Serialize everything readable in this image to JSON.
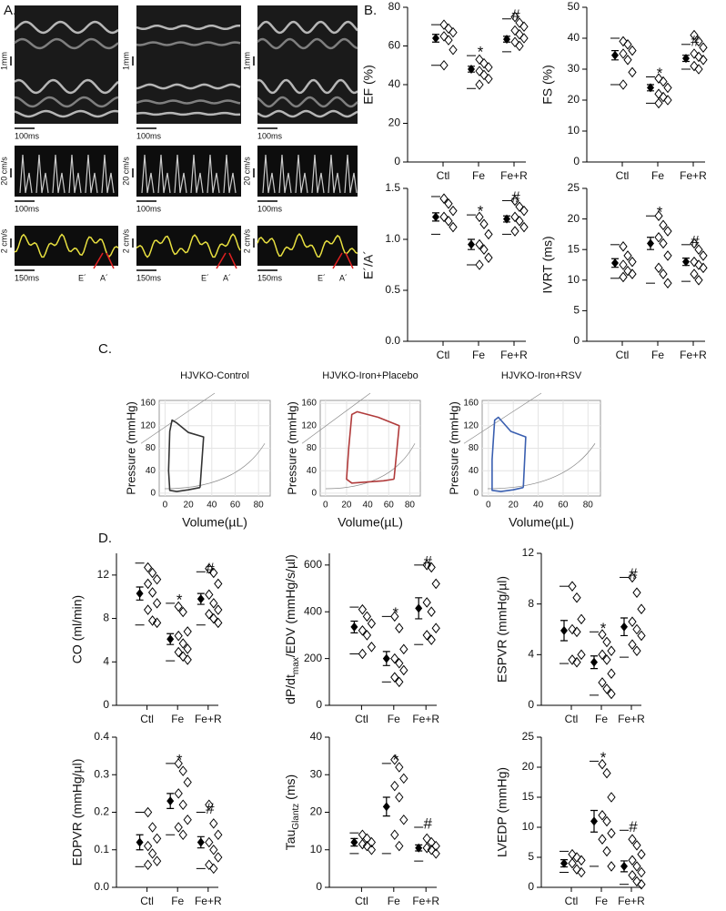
{
  "panels": {
    "a": "A.",
    "b": "B.",
    "c": "C.",
    "d": "D."
  },
  "panel_a": {
    "mmode": {
      "scale_y": "1mm",
      "scale_x": "100ms"
    },
    "doppler": {
      "scale_y": "20 cm/s",
      "scale_x": "100ms"
    },
    "tissue": {
      "scale_y": "2 cm/s",
      "scale_x": "150ms",
      "e": "E´",
      "a": "A´"
    }
  },
  "chart_data": [
    {
      "type": "dotplot",
      "ylabel": "EF (%)",
      "categories": [
        "Ctl",
        "Fe",
        "Fe+R"
      ],
      "ylim": [
        0,
        80
      ],
      "yticks": [
        0,
        20,
        40,
        60,
        80
      ],
      "means": [
        64,
        48,
        63.5
      ],
      "sems": [
        2,
        1.5,
        1.5
      ],
      "whisker_high": [
        71,
        55,
        74
      ],
      "whisker_low": [
        50,
        38,
        57
      ],
      "points": [
        [
          71,
          69,
          67,
          65,
          63,
          58,
          50
        ],
        [
          53,
          51,
          49,
          47,
          45,
          43,
          40
        ],
        [
          75,
          72,
          70,
          68,
          66,
          64,
          62,
          60
        ]
      ],
      "annotations": [
        null,
        "*",
        "#"
      ]
    },
    {
      "type": "dotplot",
      "ylabel": "FS (%)",
      "categories": [
        "Ctl",
        "Fe",
        "Fe+R"
      ],
      "ylim": [
        0,
        50
      ],
      "yticks": [
        0,
        10,
        20,
        30,
        40,
        50
      ],
      "means": [
        34.5,
        24,
        33.5
      ],
      "sems": [
        1.5,
        1,
        1
      ],
      "whisker_high": [
        40,
        27.5,
        38
      ],
      "whisker_low": [
        25,
        19,
        30
      ],
      "points": [
        [
          39,
          38,
          36,
          35,
          33,
          29,
          25
        ],
        [
          27,
          26,
          24,
          22,
          21,
          20,
          19
        ],
        [
          41,
          39,
          37,
          35,
          34,
          33,
          31,
          30
        ]
      ],
      "annotations": [
        null,
        "*",
        "#"
      ]
    },
    {
      "type": "dotplot",
      "ylabel": "E´/A´",
      "categories": [
        "Ctl",
        "Fe",
        "Fe+R"
      ],
      "ylim": [
        0,
        1.5
      ],
      "yticks": [
        {
          "value": 0,
          "label": "0.0"
        },
        {
          "value": 0.5,
          "label": "0.5"
        },
        {
          "value": 1,
          "label": "1.0"
        },
        {
          "value": 1.5,
          "label": "1.5"
        }
      ],
      "means": [
        1.22,
        0.95,
        1.2
      ],
      "sems": [
        0.04,
        0.05,
        0.03
      ],
      "whisker_high": [
        1.42,
        1.24,
        1.38
      ],
      "whisker_low": [
        1.05,
        0.75,
        1.05
      ],
      "points": [
        [
          1.4,
          1.35,
          1.28,
          1.22,
          1.18,
          1.12
        ],
        [
          1.22,
          1.15,
          1.05,
          0.95,
          0.9,
          0.82,
          0.75
        ],
        [
          1.38,
          1.32,
          1.28,
          1.22,
          1.18,
          1.12,
          1.08
        ]
      ],
      "annotations": [
        null,
        "*",
        "#"
      ]
    },
    {
      "type": "dotplot",
      "ylabel": "IVRT (ms)",
      "categories": [
        "Ctl",
        "Fe",
        "Fe+R"
      ],
      "ylim": [
        0,
        25
      ],
      "yticks": [
        0,
        5,
        10,
        15,
        20,
        25
      ],
      "means": [
        12.8,
        16,
        13
      ],
      "sems": [
        0.7,
        1,
        0.6
      ],
      "whisker_high": [
        15.8,
        20.5,
        15.8
      ],
      "whisker_low": [
        10.3,
        9.5,
        9.8
      ],
      "points": [
        [
          15.5,
          14,
          13,
          12.5,
          11.5,
          11,
          10.5
        ],
        [
          20.5,
          19,
          18,
          17,
          16,
          14,
          12,
          11,
          9.5
        ],
        [
          16,
          15,
          14,
          13,
          12.5,
          12,
          11,
          10
        ]
      ],
      "annotations": [
        null,
        "*",
        "#"
      ]
    },
    {
      "type": "pv_loop",
      "title": "HJVKO-Control",
      "xlabel": "Volume(µL)",
      "ylabel": "Pressure  (mmHg)",
      "xlim": [
        -5,
        90
      ],
      "xticks": [
        0,
        20,
        40,
        60,
        80
      ],
      "ylim": [
        -5,
        165
      ],
      "yticks": [
        0,
        40,
        80,
        120,
        160
      ],
      "series": [
        {
          "color": "#333333",
          "x": [
            30,
            33,
            20,
            10,
            6,
            4,
            3,
            4,
            10,
            20,
            30
          ],
          "y": [
            10,
            100,
            108,
            125,
            130,
            110,
            40,
            5,
            3,
            6,
            10
          ]
        }
      ]
    },
    {
      "type": "pv_loop",
      "title": "HJVKO-Iron+Placebo",
      "xlabel": "Volume(µL)",
      "ylabel": "Pressure  (mmHg)",
      "xlim": [
        -5,
        90
      ],
      "xticks": [
        0,
        20,
        40,
        60,
        80
      ],
      "ylim": [
        -5,
        165
      ],
      "yticks": [
        0,
        40,
        80,
        120,
        160
      ],
      "series": [
        {
          "color": "#b03a3a",
          "x": [
            65,
            70,
            50,
            30,
            25,
            22,
            20,
            25,
            40,
            55,
            65
          ],
          "y": [
            25,
            120,
            135,
            145,
            140,
            80,
            25,
            18,
            20,
            22,
            25
          ]
        }
      ]
    },
    {
      "type": "pv_loop",
      "title": "HJVKO-Iron+RSV",
      "xlabel": "Volume(µL)",
      "ylabel": "Pressure  (mmHg)",
      "xlim": [
        -5,
        90
      ],
      "xticks": [
        0,
        20,
        40,
        60,
        80
      ],
      "ylim": [
        -5,
        165
      ],
      "yticks": [
        0,
        40,
        80,
        120,
        160
      ],
      "series": [
        {
          "color": "#3a5fb0",
          "x": [
            28,
            30,
            18,
            8,
            5,
            3,
            3,
            10,
            20,
            28
          ],
          "y": [
            10,
            100,
            110,
            135,
            130,
            60,
            5,
            3,
            6,
            10
          ]
        }
      ]
    },
    {
      "type": "dotplot",
      "ylabel": "CO (ml/min)",
      "categories": [
        "Ctl",
        "Fe",
        "Fe+R"
      ],
      "ylim": [
        0,
        14
      ],
      "yticks": [
        0,
        4,
        8,
        12
      ],
      "means": [
        10.3,
        6.1,
        9.8
      ],
      "sems": [
        0.6,
        0.5,
        0.5
      ],
      "whisker_high": [
        13.1,
        9.4,
        12.3
      ],
      "whisker_low": [
        7.4,
        4.1,
        7.4
      ],
      "points": [
        [
          12.7,
          12.2,
          11.6,
          11.2,
          10.4,
          9.4,
          8.8,
          7.8,
          7.6
        ],
        [
          9.1,
          8.6,
          6.8,
          6.4,
          5.7,
          5.2,
          4.9,
          4.5,
          4.2
        ],
        [
          12.6,
          12.2,
          11.2,
          10.2,
          9.4,
          8.8,
          8.4,
          8.0,
          7.6
        ]
      ],
      "annotations": [
        null,
        "*",
        "#"
      ]
    },
    {
      "type": "dotplot",
      "ylabel": [
        "dP/dt",
        "max",
        "/EDV (mmHg/s/µl)"
      ],
      "categories": [
        "Ctl",
        "Fe",
        "Fe+R"
      ],
      "ylim": [
        0,
        650
      ],
      "yticks": [
        0,
        200,
        400,
        600
      ],
      "means": [
        335,
        200,
        415
      ],
      "sems": [
        25,
        30,
        45
      ],
      "whisker_high": [
        420,
        380,
        600
      ],
      "whisker_low": [
        220,
        100,
        260
      ],
      "points": [
        [
          410,
          380,
          350,
          320,
          300,
          250,
          220
        ],
        [
          380,
          330,
          240,
          200,
          180,
          150,
          120,
          100
        ],
        [
          600,
          590,
          520,
          440,
          400,
          330,
          300,
          280
        ]
      ],
      "annotations": [
        null,
        "*",
        "#"
      ]
    },
    {
      "type": "dotplot",
      "ylabel": "ESPVR (mmHg/µl)",
      "categories": [
        "Ctl",
        "Fe",
        "Fe+R"
      ],
      "ylim": [
        0,
        12
      ],
      "yticks": [
        0,
        4,
        8,
        12
      ],
      "means": [
        5.9,
        3.4,
        6.2
      ],
      "sems": [
        0.8,
        0.5,
        0.7
      ],
      "whisker_high": [
        9.4,
        5.8,
        10.1
      ],
      "whisker_low": [
        3.3,
        0.8,
        3.8
      ],
      "points": [
        [
          9.4,
          8.5,
          6.8,
          6.0,
          5.8,
          4.0,
          3.6,
          3.4
        ],
        [
          5.6,
          5.0,
          4.3,
          4.0,
          3.6,
          2.5,
          1.8,
          1.3,
          0.9
        ],
        [
          10.1,
          8.9,
          7.6,
          6.6,
          6.0,
          5.5,
          4.8,
          4.3
        ]
      ],
      "annotations": [
        null,
        "*",
        "#"
      ]
    },
    {
      "type": "dotplot",
      "ylabel": "EDPVR (mmHg/µl)",
      "categories": [
        "Ctl",
        "Fe",
        "Fe+R"
      ],
      "ylim": [
        0,
        0.4
      ],
      "yticks": [
        {
          "value": 0,
          "label": "0.0"
        },
        0.1,
        0.2,
        0.3,
        0.4
      ],
      "means": [
        0.12,
        0.23,
        0.12
      ],
      "sems": [
        0.02,
        0.02,
        0.015
      ],
      "whisker_high": [
        0.2,
        0.33,
        0.2
      ],
      "whisker_low": [
        0.055,
        0.14,
        0.05
      ],
      "points": [
        [
          0.2,
          0.16,
          0.13,
          0.11,
          0.09,
          0.07,
          0.06
        ],
        [
          0.33,
          0.31,
          0.28,
          0.25,
          0.22,
          0.18,
          0.16,
          0.14
        ],
        [
          0.22,
          0.17,
          0.14,
          0.12,
          0.1,
          0.08,
          0.06,
          0.05
        ]
      ],
      "annotations": [
        null,
        "*",
        "#"
      ]
    },
    {
      "type": "dotplot",
      "ylabel": [
        "Tau",
        "Glantz",
        " (ms)"
      ],
      "categories": [
        "Ctl",
        "Fe",
        "Fe+R"
      ],
      "ylim": [
        0,
        40
      ],
      "yticks": [
        0,
        10,
        20,
        30,
        40
      ],
      "means": [
        12,
        21.5,
        10.5
      ],
      "sems": [
        1,
        2.5,
        0.8
      ],
      "whisker_high": [
        14.5,
        33,
        16
      ],
      "whisker_low": [
        9,
        9,
        7
      ],
      "points": [
        [
          14,
          13,
          12,
          11.5,
          11,
          10
        ],
        [
          34,
          32,
          29,
          27,
          24,
          18,
          14,
          11
        ],
        [
          13,
          12,
          11,
          10.5,
          10,
          9
        ]
      ],
      "annotations": [
        null,
        "*",
        "#"
      ]
    },
    {
      "type": "dotplot",
      "ylabel": "LVEDP (mmHg)",
      "categories": [
        "Ctl",
        "Fe",
        "Fe+R"
      ],
      "ylim": [
        0,
        25
      ],
      "yticks": [
        0,
        5,
        10,
        15,
        20,
        25
      ],
      "means": [
        4,
        11,
        3.5
      ],
      "sems": [
        0.6,
        1.8,
        0.9
      ],
      "whisker_high": [
        6,
        21,
        9.5
      ],
      "whisker_low": [
        2.5,
        3.5,
        0.5
      ],
      "points": [
        [
          5.5,
          5,
          4.5,
          4,
          3,
          2.5
        ],
        [
          20.5,
          19,
          15,
          12,
          11,
          9,
          8,
          6,
          3.5
        ],
        [
          8,
          7,
          5.5,
          4.5,
          3.5,
          2.5,
          2,
          1,
          0.5
        ]
      ],
      "annotations": [
        null,
        "*",
        "#"
      ]
    }
  ]
}
